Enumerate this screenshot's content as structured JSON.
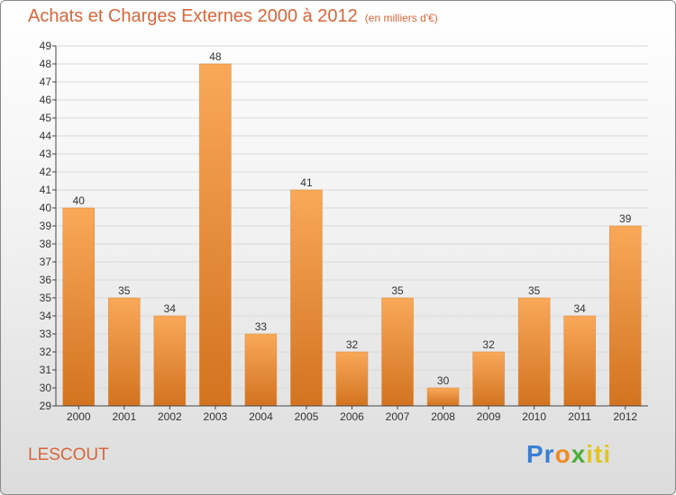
{
  "header": {
    "title": "Achats et Charges Externes 2000 à 2012",
    "subtitle": "(en milliers d'€)"
  },
  "footer": {
    "town": "LESCOUT",
    "logo": [
      "Pr",
      "o",
      "x",
      "iti"
    ]
  },
  "colors": {
    "title": "#d8663a",
    "bar_top": "#f9a85a",
    "bar_bottom": "#d2731f",
    "grid": "#d9d9d9",
    "axis": "#444444"
  },
  "chart_data": {
    "type": "bar",
    "title": "Achats et Charges Externes 2000 à 2012",
    "xlabel": "",
    "ylabel": "",
    "categories": [
      "2000",
      "2001",
      "2002",
      "2003",
      "2004",
      "2005",
      "2006",
      "2007",
      "2008",
      "2009",
      "2010",
      "2011",
      "2012"
    ],
    "values": [
      40,
      35,
      34,
      48,
      33,
      41,
      32,
      35,
      30,
      32,
      35,
      34,
      39
    ],
    "ylim": [
      29,
      49
    ],
    "yticks": [
      29,
      30,
      31,
      32,
      33,
      34,
      35,
      36,
      37,
      38,
      39,
      40,
      41,
      42,
      43,
      44,
      45,
      46,
      47,
      48,
      49
    ],
    "grid": true,
    "data_labels": true
  }
}
